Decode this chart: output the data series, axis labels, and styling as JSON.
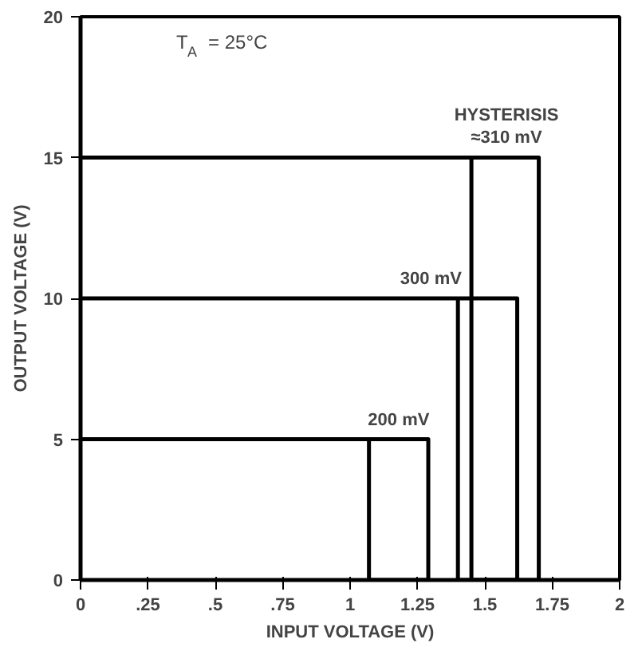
{
  "chart_data": {
    "type": "line",
    "xlabel": "INPUT VOLTAGE (V)",
    "ylabel": "OUTPUT VOLTAGE (V)",
    "series": [
      {
        "color": "#000000",
        "x": [
          0,
          1.29,
          1.29,
          1.07,
          1.07
        ],
        "values": [
          5,
          5,
          0,
          0,
          5
        ]
      },
      {
        "color": "#000000",
        "x": [
          0,
          1.62,
          1.62,
          1.4,
          1.4
        ],
        "values": [
          10,
          10,
          0,
          0,
          10
        ]
      },
      {
        "color": "#000000",
        "x": [
          0,
          1.7,
          1.7,
          1.45,
          1.45
        ],
        "values": [
          15,
          15,
          0,
          0,
          15
        ]
      }
    ],
    "xlim": [
      0,
      2
    ],
    "ylim": [
      0,
      20
    ],
    "xticks": [
      0,
      {
        "value": 0.25,
        "label": ".25"
      },
      {
        "value": 0.5,
        "label": ".5"
      },
      {
        "value": 0.75,
        "label": ".75"
      },
      1,
      1.25,
      1.5,
      1.75,
      2
    ],
    "yticks": [
      0,
      5,
      10,
      15,
      20
    ],
    "grid": false,
    "marker": "none",
    "line_style": "solid",
    "annotations": [
      "T$_{A}$ = 25°C",
      {
        "text": "200 mV",
        "x": 1.18,
        "y": 5
      },
      {
        "text": "300 mV",
        "x": 1.3,
        "y": 10
      },
      {
        "text": "HYSTERISIS\n≈310 mV",
        "x": 1.58,
        "y": 15
      }
    ]
  }
}
